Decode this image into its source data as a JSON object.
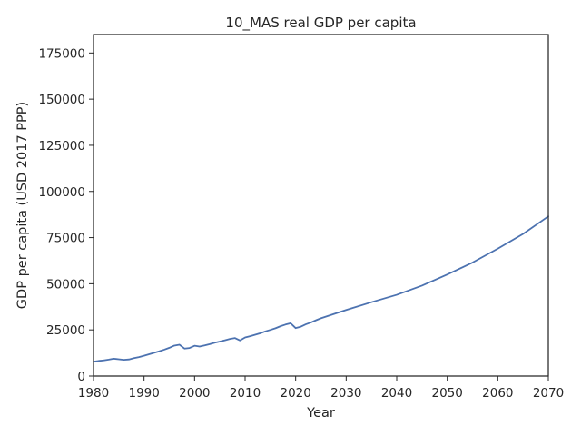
{
  "chart_data": {
    "type": "line",
    "title": "10_MAS real GDP per capita",
    "xlabel": "Year",
    "ylabel": "GDP per capita (USD 2017 PPP)",
    "xlim": [
      1980,
      2070
    ],
    "ylim": [
      0,
      185000
    ],
    "xticks": [
      1980,
      1990,
      2000,
      2010,
      2020,
      2030,
      2040,
      2050,
      2060,
      2070
    ],
    "yticks": [
      0,
      25000,
      50000,
      75000,
      100000,
      125000,
      150000,
      175000
    ],
    "grid": false,
    "series": [
      {
        "name": "10_MAS",
        "color": "#4c72b0",
        "x": [
          1980,
          1981,
          1982,
          1983,
          1984,
          1985,
          1986,
          1987,
          1988,
          1989,
          1990,
          1991,
          1992,
          1993,
          1994,
          1995,
          1996,
          1997,
          1998,
          1999,
          2000,
          2001,
          2002,
          2003,
          2004,
          2005,
          2006,
          2007,
          2008,
          2009,
          2010,
          2011,
          2012,
          2013,
          2014,
          2015,
          2016,
          2017,
          2018,
          2019,
          2020,
          2021,
          2022,
          2023,
          2024,
          2025,
          2030,
          2035,
          2040,
          2045,
          2050,
          2055,
          2060,
          2065,
          2070
        ],
        "values": [
          7800,
          8200,
          8500,
          8900,
          9400,
          9100,
          8800,
          9000,
          9700,
          10300,
          11000,
          11800,
          12600,
          13400,
          14300,
          15300,
          16500,
          17000,
          14900,
          15200,
          16400,
          16000,
          16600,
          17300,
          18100,
          18700,
          19400,
          20100,
          20600,
          19300,
          20900,
          21600,
          22400,
          23200,
          24200,
          25000,
          25900,
          27000,
          27900,
          28600,
          26000,
          26700,
          28000,
          29000,
          30200,
          31300,
          35800,
          40000,
          44000,
          49000,
          55000,
          61500,
          69000,
          77000,
          86500
        ]
      }
    ]
  }
}
